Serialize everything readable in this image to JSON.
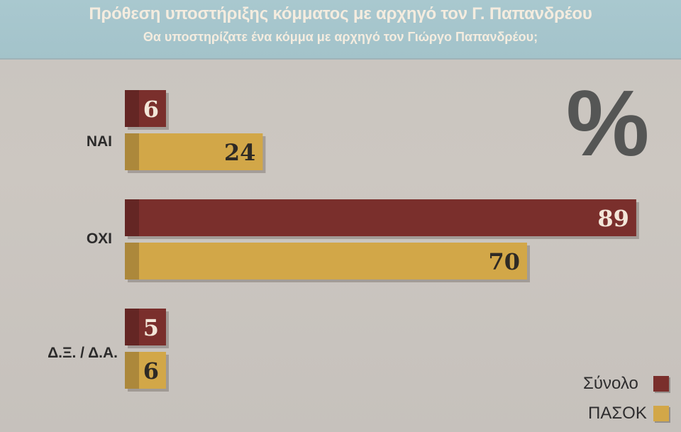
{
  "header": {
    "title": "Πρόθεση υποστήριξης κόμματος με αρχηγό τον Γ. Παπανδρέου",
    "subtitle": "Θα υποστηρίζατε ένα κόμμα με αρχηγό τον Γιώργο Παπανδρέου;"
  },
  "chart_data": {
    "type": "bar",
    "orientation": "horizontal",
    "unit_label": "%",
    "categories": [
      "ΝΑΙ",
      "ΟΧΙ",
      "Δ.Ξ. / Δ.Α."
    ],
    "series": [
      {
        "name": "Σύνολο",
        "values": [
          6,
          89,
          5
        ],
        "color": "#7a2f2c"
      },
      {
        "name": "ΠΑΣΟΚ",
        "values": [
          24,
          70,
          6
        ],
        "color": "#d2a748"
      }
    ],
    "xlim": [
      0,
      100
    ],
    "grid": false,
    "legend_position": "bottom-right"
  }
}
